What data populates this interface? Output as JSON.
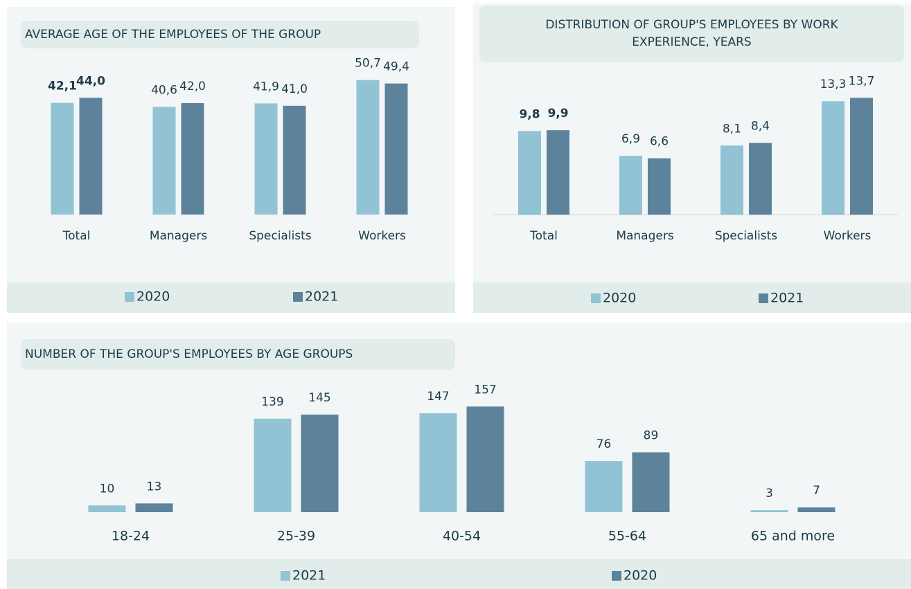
{
  "chart_data": [
    {
      "type": "bar",
      "title": "AVERAGE AGE OF THE EMPLOYEES OF THE GROUP",
      "categories": [
        "Total",
        "Managers",
        "Specialists",
        "Workers"
      ],
      "series": [
        {
          "name": "2020",
          "color": "#92c3d5",
          "values": [
            42.1,
            40.6,
            41.9,
            50.7
          ],
          "value_labels": [
            "42,1",
            "40,6",
            "41,9",
            "50,7"
          ]
        },
        {
          "name": "2021",
          "color": "#5d839c",
          "values": [
            44.0,
            42.0,
            41.0,
            49.4
          ],
          "value_labels": [
            "44,0",
            "42,0",
            "41,0",
            "49,4"
          ]
        }
      ],
      "ylim": [
        0,
        60
      ]
    },
    {
      "type": "bar",
      "title": "DISTRIBUTION OF GROUP'S EMPLOYEES BY WORK EXPERIENCE, YEARS",
      "categories": [
        "Total",
        "Managers",
        "Specialists",
        "Workers"
      ],
      "series": [
        {
          "name": "2020",
          "color": "#92c3d5",
          "values": [
            9.8,
            6.9,
            8.1,
            13.3
          ],
          "value_labels": [
            "9,8",
            "6,9",
            "8,1",
            "13,3"
          ]
        },
        {
          "name": "2021",
          "color": "#5d839c",
          "values": [
            9.9,
            6.6,
            8.4,
            13.7
          ],
          "value_labels": [
            "9,9",
            "6,6",
            "8,4",
            "13,7"
          ]
        }
      ],
      "ylim": [
        0,
        16
      ]
    },
    {
      "type": "bar",
      "title": "NUMBER OF THE GROUP'S EMPLOYEES BY AGE GROUPS",
      "categories": [
        "18-24",
        "25-39",
        "40-54",
        "55-64",
        "65 and more"
      ],
      "series": [
        {
          "name": "2021",
          "color": "#92c3d5",
          "values": [
            10,
            139,
            147,
            76,
            3
          ]
        },
        {
          "name": "2020",
          "color": "#5d839c",
          "values": [
            13,
            145,
            157,
            89,
            7
          ]
        }
      ],
      "ylim": [
        0,
        180
      ]
    }
  ]
}
